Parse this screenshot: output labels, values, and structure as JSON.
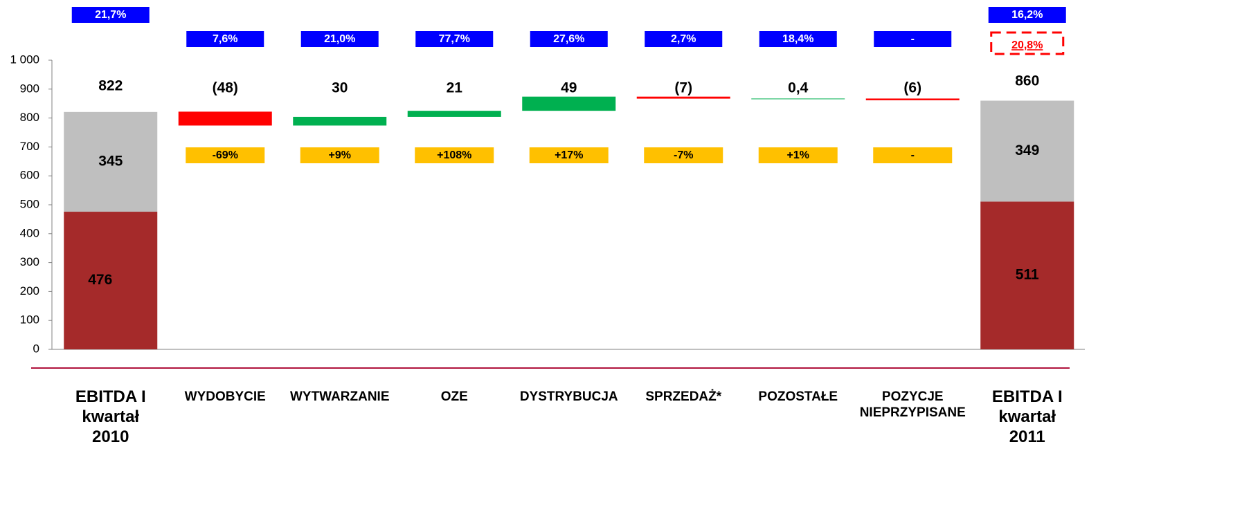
{
  "chart_data": {
    "type": "waterfall",
    "categories": [
      "EBITDA I kwartał 2010",
      "WYDOBYCIE",
      "WYTWARZANIE",
      "OZE",
      "DYSTRYBUCJA",
      "SPRZEDAŻ*",
      "POZOSTAŁE",
      "POZYCJE NIEPRZYPISANE",
      "EBITDA I kwartał 2011"
    ],
    "series": [
      {
        "color": "#a52a2a",
        "values": [
          476,
          null,
          null,
          null,
          null,
          null,
          null,
          null,
          511
        ]
      },
      {
        "color": "#bfbfbf",
        "values": [
          345,
          null,
          null,
          null,
          null,
          null,
          null,
          null,
          349
        ]
      }
    ],
    "totals": {
      "values": [
        822,
        null,
        null,
        null,
        null,
        null,
        null,
        null,
        860
      ]
    },
    "deltas": {
      "values": [
        null,
        -48,
        30,
        21,
        49,
        -7,
        0.4,
        -6,
        null
      ],
      "value_labels": [
        null,
        "(48)",
        "30",
        "21",
        "49",
        "(7)",
        "0,4",
        "(6)",
        null
      ],
      "up_color": "#00b050",
      "down_color": "#ff0000"
    },
    "margins": {
      "values": [
        "21,7%",
        "7,6%",
        "21,0%",
        "77,7%",
        "27,6%",
        "2,7%",
        "18,4%",
        "-",
        "16,2%"
      ],
      "color": "#0000ff"
    },
    "margin_targets": {
      "values": [
        null,
        null,
        null,
        null,
        null,
        null,
        null,
        null,
        "20,8%"
      ],
      "color": "#ff0000"
    },
    "changes": {
      "values": [
        null,
        "-69%",
        "+9%",
        "+108%",
        "+17%",
        "-7%",
        "+1%",
        "-",
        null
      ],
      "color": "#ffc000"
    },
    "ylim": [
      0,
      1000
    ],
    "yticks": [
      0,
      100,
      200,
      300,
      400,
      500,
      600,
      700,
      800,
      900,
      {
        "value": 1000,
        "label": "1 000"
      }
    ]
  }
}
